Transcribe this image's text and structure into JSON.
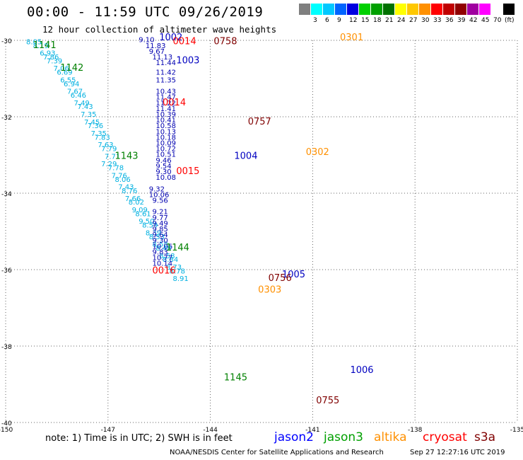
{
  "title": "00:00 - 11:59 UTC 09/26/2019",
  "subtitle": "12 hour collection of altimeter wave heights",
  "scale": {
    "unit": "(ft)",
    "bins": [
      {
        "label": "",
        "color": "#7f7f7f"
      },
      {
        "label": "3",
        "color": "#00ffff"
      },
      {
        "label": "6",
        "color": "#00c8ff"
      },
      {
        "label": "9",
        "color": "#0064ff"
      },
      {
        "label": "12",
        "color": "#0000e0"
      },
      {
        "label": "15",
        "color": "#00d000"
      },
      {
        "label": "18",
        "color": "#00a000"
      },
      {
        "label": "21",
        "color": "#007000"
      },
      {
        "label": "24",
        "color": "#ffff00"
      },
      {
        "label": "27",
        "color": "#ffc800"
      },
      {
        "label": "30",
        "color": "#ff9000"
      },
      {
        "label": "33",
        "color": "#ff0000"
      },
      {
        "label": "36",
        "color": "#c00000"
      },
      {
        "label": "39",
        "color": "#900000"
      },
      {
        "label": "42",
        "color": "#a000a0"
      },
      {
        "label": "45",
        "color": "#ff00ff"
      },
      {
        "label": "70",
        "color": "#ffffff"
      },
      {
        "label": "",
        "color": "#000000"
      }
    ]
  },
  "axes": {
    "lat_labels": [
      "-30",
      "-32",
      "-34",
      "-36",
      "-38",
      "-40"
    ],
    "lon_labels": [
      "-150",
      "-147",
      "-144",
      "-141",
      "-138",
      "-135"
    ],
    "lat_range": [
      -40,
      -30
    ],
    "lon_range": [
      -150,
      -135
    ]
  },
  "tracks": [
    {
      "color": "#00b0e0",
      "points": [
        [
          "8.05",
          -30.1,
          -149.4
        ],
        [
          "8.19",
          -30.2,
          -149.2
        ],
        [
          "6.93",
          -30.4,
          -149.0
        ],
        [
          "7.86",
          -30.5,
          -148.9
        ],
        [
          "7.39",
          -30.6,
          -148.8
        ],
        [
          "7.06",
          -30.8,
          -148.6
        ],
        [
          "6.69",
          -30.9,
          -148.5
        ],
        [
          "6.55",
          -31.1,
          -148.4
        ],
        [
          "6.94",
          -31.2,
          -148.3
        ],
        [
          "7.67",
          -31.4,
          -148.2
        ],
        [
          "6.46",
          -31.5,
          -148.1
        ],
        [
          "7.49",
          -31.7,
          -148.0
        ],
        [
          "7.43",
          -31.8,
          -147.9
        ],
        [
          "7.35",
          -32.0,
          -147.8
        ],
        [
          "7.45",
          -32.2,
          -147.7
        ],
        [
          "7.36",
          -32.3,
          -147.6
        ],
        [
          "7.35",
          -32.5,
          -147.5
        ],
        [
          "7.83",
          -32.6,
          -147.4
        ],
        [
          "7.63",
          -32.8,
          -147.3
        ],
        [
          "7.79",
          -32.9,
          -147.2
        ],
        [
          "7.71",
          -33.1,
          -147.1
        ],
        [
          "7.29",
          -33.3,
          -147.2
        ],
        [
          "7.78",
          -33.4,
          -147.0
        ],
        [
          "7.76",
          -33.6,
          -146.9
        ],
        [
          "8.06",
          -33.7,
          -146.8
        ],
        [
          "7.43",
          -33.9,
          -146.7
        ],
        [
          "8.76",
          -34.0,
          -146.6
        ],
        [
          "7.66",
          -34.2,
          -146.5
        ],
        [
          "8.02",
          -34.3,
          -146.4
        ],
        [
          "9.09",
          -34.5,
          -146.3
        ],
        [
          "8.61",
          -34.6,
          -146.2
        ],
        [
          "9.50",
          -34.8,
          -146.1
        ],
        [
          "8.59",
          -34.9,
          -146.0
        ],
        [
          "8.39",
          -35.1,
          -145.9
        ],
        [
          "8.53",
          -35.2,
          -145.8
        ],
        [
          "8.58",
          -35.4,
          -145.7
        ],
        [
          "8.48",
          -35.5,
          -145.6
        ],
        [
          "8.58",
          -35.7,
          -145.5
        ],
        [
          "8.84",
          -35.8,
          -145.4
        ],
        [
          "8.73",
          -36.0,
          -145.3
        ],
        [
          "8.78",
          -36.1,
          -145.2
        ],
        [
          "8.91",
          -36.3,
          -145.1
        ]
      ]
    },
    {
      "color": "#0000b0",
      "points": [
        [
          "9.10",
          -30.05,
          -146.1
        ],
        [
          "11.83",
          -30.2,
          -145.9
        ],
        [
          "9.67",
          -30.35,
          -145.8
        ],
        [
          "11.13",
          -30.5,
          -145.7
        ],
        [
          "11.44",
          -30.65,
          -145.6
        ],
        [
          "11.42",
          -30.9,
          -145.6
        ],
        [
          "11.35",
          -31.1,
          -145.6
        ],
        [
          "10.43",
          -31.4,
          -145.6
        ],
        [
          "11.47",
          -31.55,
          -145.6
        ],
        [
          "11.22",
          -31.7,
          -145.6
        ],
        [
          "11.41",
          -31.85,
          -145.6
        ],
        [
          "10.39",
          -32.0,
          -145.6
        ],
        [
          "10.41",
          -32.15,
          -145.6
        ],
        [
          "10.58",
          -32.3,
          -145.6
        ],
        [
          "10.13",
          -32.45,
          -145.6
        ],
        [
          "10.18",
          -32.6,
          -145.6
        ],
        [
          "10.09",
          -32.75,
          -145.6
        ],
        [
          "10.72",
          -32.9,
          -145.6
        ],
        [
          "10.51",
          -33.05,
          -145.6
        ],
        [
          "9.46",
          -33.2,
          -145.6
        ],
        [
          "9.54",
          -33.35,
          -145.6
        ],
        [
          "9.30",
          -33.5,
          -145.6
        ],
        [
          "10.08",
          -33.65,
          -145.6
        ],
        [
          "9.32",
          -33.95,
          -145.8
        ],
        [
          "10.06",
          -34.1,
          -145.8
        ],
        [
          "9.56",
          -34.25,
          -145.7
        ],
        [
          "9.21",
          -34.55,
          -145.7
        ],
        [
          "9.77",
          -34.7,
          -145.7
        ],
        [
          "9.49",
          -34.85,
          -145.7
        ],
        [
          "9.85",
          -35.0,
          -145.7
        ],
        [
          "9.64",
          -35.15,
          -145.7
        ],
        [
          "9.30",
          -35.3,
          -145.7
        ],
        [
          "10.06",
          -35.45,
          -145.7
        ],
        [
          "9.83",
          -35.6,
          -145.7
        ],
        [
          "10.77",
          -35.75,
          -145.7
        ],
        [
          "10.14",
          -35.9,
          -145.7
        ]
      ]
    }
  ],
  "labels": [
    {
      "text": "1141",
      "color": "#008000",
      "lat": -30.2,
      "lon": -149.2,
      "size": 13
    },
    {
      "text": "1142",
      "color": "#008000",
      "lat": -30.8,
      "lon": -148.4,
      "size": 13
    },
    {
      "text": "1143",
      "color": "#008000",
      "lat": -33.1,
      "lon": -146.8,
      "size": 13
    },
    {
      "text": "1144",
      "color": "#008000",
      "lat": -35.5,
      "lon": -145.3,
      "size": 13
    },
    {
      "text": "1145",
      "color": "#008000",
      "lat": -38.9,
      "lon": -143.6,
      "size": 13
    },
    {
      "text": "1002",
      "color": "#0000c0",
      "lat": -30.0,
      "lon": -145.5,
      "size": 13
    },
    {
      "text": "1003",
      "color": "#0000c0",
      "lat": -30.6,
      "lon": -145.0,
      "size": 13
    },
    {
      "text": "1004",
      "color": "#0000c0",
      "lat": -33.1,
      "lon": -143.3,
      "size": 13
    },
    {
      "text": "1005",
      "color": "#0000c0",
      "lat": -36.2,
      "lon": -141.9,
      "size": 13
    },
    {
      "text": "1006",
      "color": "#0000c0",
      "lat": -38.7,
      "lon": -139.9,
      "size": 13
    },
    {
      "text": "0014",
      "color": "#ff0000",
      "lat": -30.1,
      "lon": -145.1,
      "size": 13
    },
    {
      "text": "0014",
      "color": "#ff0000",
      "lat": -31.7,
      "lon": -145.4,
      "size": 13
    },
    {
      "text": "0015",
      "color": "#ff0000",
      "lat": -33.5,
      "lon": -145.0,
      "size": 13
    },
    {
      "text": "0016",
      "color": "#ff0000",
      "lat": -36.1,
      "lon": -145.7,
      "size": 13
    },
    {
      "text": "0758",
      "color": "#800000",
      "lat": -30.1,
      "lon": -143.9,
      "size": 13
    },
    {
      "text": "0757",
      "color": "#800000",
      "lat": -32.2,
      "lon": -142.9,
      "size": 13
    },
    {
      "text": "0756",
      "color": "#800000",
      "lat": -36.3,
      "lon": -142.3,
      "size": 13
    },
    {
      "text": "0755",
      "color": "#800000",
      "lat": -39.5,
      "lon": -140.9,
      "size": 13
    },
    {
      "text": "0301",
      "color": "#ff9000",
      "lat": -30.0,
      "lon": -140.2,
      "size": 13
    },
    {
      "text": "0302",
      "color": "#ff9000",
      "lat": -33.0,
      "lon": -141.2,
      "size": 13
    },
    {
      "text": "0303",
      "color": "#ff9000",
      "lat": -36.6,
      "lon": -142.6,
      "size": 13
    }
  ],
  "legend": {
    "note": "note: 1) Time is in UTC; 2) SWH is in feet",
    "sats": [
      {
        "name": "jason2",
        "color": "#0000ff"
      },
      {
        "name": "jason3",
        "color": "#00a000"
      },
      {
        "name": "altika",
        "color": "#ff9000"
      },
      {
        "name": "cryosat",
        "color": "#ff0000"
      },
      {
        "name": "s3a",
        "color": "#800000"
      }
    ]
  },
  "credit": "NOAA/NESDIS Center for Satellite Applications and Research",
  "stamp": "Sep 27 12:27:16 UTC 2019"
}
